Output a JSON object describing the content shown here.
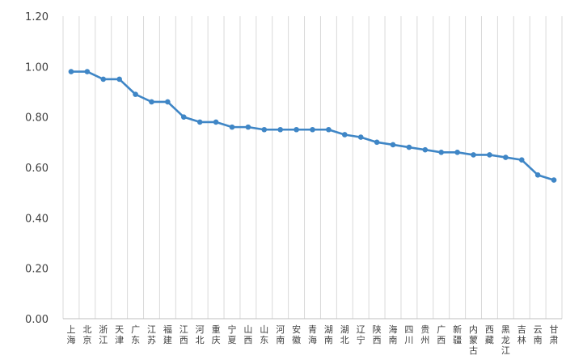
{
  "chart_data": {
    "type": "line",
    "title": "",
    "xlabel": "",
    "ylabel": "",
    "ylim": [
      0,
      1.2
    ],
    "yticks": [
      "0.00",
      "0.20",
      "0.40",
      "0.60",
      "0.80",
      "1.00",
      "1.20"
    ],
    "grid": "vertical-category-lines",
    "legend": "none",
    "line_color": "#3F86C6",
    "categories": [
      "上海",
      "北京",
      "浙江",
      "天津",
      "广东",
      "江苏",
      "福建",
      "江西",
      "河北",
      "重庆",
      "宁夏",
      "山西",
      "山东",
      "河南",
      "安徽",
      "青海",
      "湖南",
      "湖北",
      "辽宁",
      "陕西",
      "海南",
      "四川",
      "贵州",
      "广西",
      "新疆",
      "内蒙古",
      "西藏",
      "黑龙江",
      "吉林",
      "云南",
      "甘肃"
    ],
    "values": [
      0.98,
      0.98,
      0.95,
      0.95,
      0.89,
      0.86,
      0.86,
      0.8,
      0.78,
      0.78,
      0.76,
      0.76,
      0.75,
      0.75,
      0.75,
      0.75,
      0.75,
      0.73,
      0.72,
      0.7,
      0.69,
      0.68,
      0.67,
      0.66,
      0.66,
      0.65,
      0.65,
      0.64,
      0.63,
      0.57,
      0.55
    ]
  }
}
